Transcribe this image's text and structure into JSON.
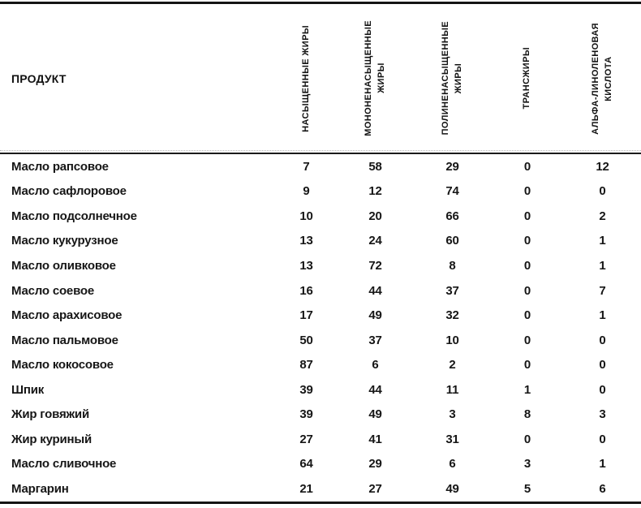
{
  "table": {
    "product_header": "ПРОДУКТ",
    "value_columns": [
      {
        "label": "НАСЫЩЕННЫЕ ЖИРЫ"
      },
      {
        "label": "МОНОНЕНАСЫЩЕННЫЕ\nЖИРЫ"
      },
      {
        "label": "ПОЛИНЕНАСЫЩЕННЫЕ\nЖИРЫ"
      },
      {
        "label": "ТРАНСЖИРЫ"
      },
      {
        "label": "АЛЬФА-ЛИНОЛЕНОВАЯ\nКИСЛОТА"
      }
    ],
    "rows": [
      {
        "product": "Масло рапсовое",
        "values": [
          7,
          58,
          29,
          0,
          12
        ]
      },
      {
        "product": "Масло сафлоровое",
        "values": [
          9,
          12,
          74,
          0,
          0
        ]
      },
      {
        "product": "Масло подсолнечное",
        "values": [
          10,
          20,
          66,
          0,
          2
        ]
      },
      {
        "product": "Масло кукурузное",
        "values": [
          13,
          24,
          60,
          0,
          1
        ]
      },
      {
        "product": "Масло оливковое",
        "values": [
          13,
          72,
          8,
          0,
          1
        ]
      },
      {
        "product": "Масло соевое",
        "values": [
          16,
          44,
          37,
          0,
          7
        ]
      },
      {
        "product": "Масло арахисовое",
        "values": [
          17,
          49,
          32,
          0,
          1
        ]
      },
      {
        "product": "Масло пальмовое",
        "values": [
          50,
          37,
          10,
          0,
          0
        ]
      },
      {
        "product": "Масло кокосовое",
        "values": [
          87,
          6,
          2,
          0,
          0
        ]
      },
      {
        "product": "Шпик",
        "values": [
          39,
          44,
          11,
          1,
          0
        ]
      },
      {
        "product": "Жир говяжий",
        "values": [
          39,
          49,
          3,
          8,
          3
        ]
      },
      {
        "product": "Жир куриный",
        "values": [
          27,
          41,
          31,
          0,
          0
        ]
      },
      {
        "product": "Масло сливочное",
        "values": [
          64,
          29,
          6,
          3,
          1
        ]
      },
      {
        "product": "Маргарин",
        "values": [
          21,
          27,
          49,
          5,
          6
        ]
      }
    ]
  },
  "chart_data": {
    "type": "table",
    "title": "",
    "columns": [
      "ПРОДУКТ",
      "НАСЫЩЕННЫЕ ЖИРЫ",
      "МОНОНЕНАСЫЩЕННЫЕ ЖИРЫ",
      "ПОЛИНЕНАСЫЩЕННЫЕ ЖИРЫ",
      "ТРАНСЖИРЫ",
      "АЛЬФА-ЛИНОЛЕНОВАЯ КИСЛОТА"
    ],
    "rows": [
      [
        "Масло рапсовое",
        7,
        58,
        29,
        0,
        12
      ],
      [
        "Масло сафлоровое",
        9,
        12,
        74,
        0,
        0
      ],
      [
        "Масло подсолнечное",
        10,
        20,
        66,
        0,
        2
      ],
      [
        "Масло кукурузное",
        13,
        24,
        60,
        0,
        1
      ],
      [
        "Масло оливковое",
        13,
        72,
        8,
        0,
        1
      ],
      [
        "Масло соевое",
        16,
        44,
        37,
        0,
        7
      ],
      [
        "Масло арахисовое",
        17,
        49,
        32,
        0,
        1
      ],
      [
        "Масло пальмовое",
        50,
        37,
        10,
        0,
        0
      ],
      [
        "Масло кокосовое",
        87,
        6,
        2,
        0,
        0
      ],
      [
        "Шпик",
        39,
        44,
        11,
        1,
        0
      ],
      [
        "Жир говяжий",
        39,
        49,
        3,
        8,
        3
      ],
      [
        "Жир куриный",
        27,
        41,
        31,
        0,
        0
      ],
      [
        "Масло сливочное",
        64,
        29,
        6,
        3,
        1
      ],
      [
        "Маргарин",
        21,
        27,
        49,
        5,
        6
      ]
    ]
  },
  "colors": {
    "text": "#161616",
    "rule": "#141414",
    "background": "#ffffff"
  }
}
